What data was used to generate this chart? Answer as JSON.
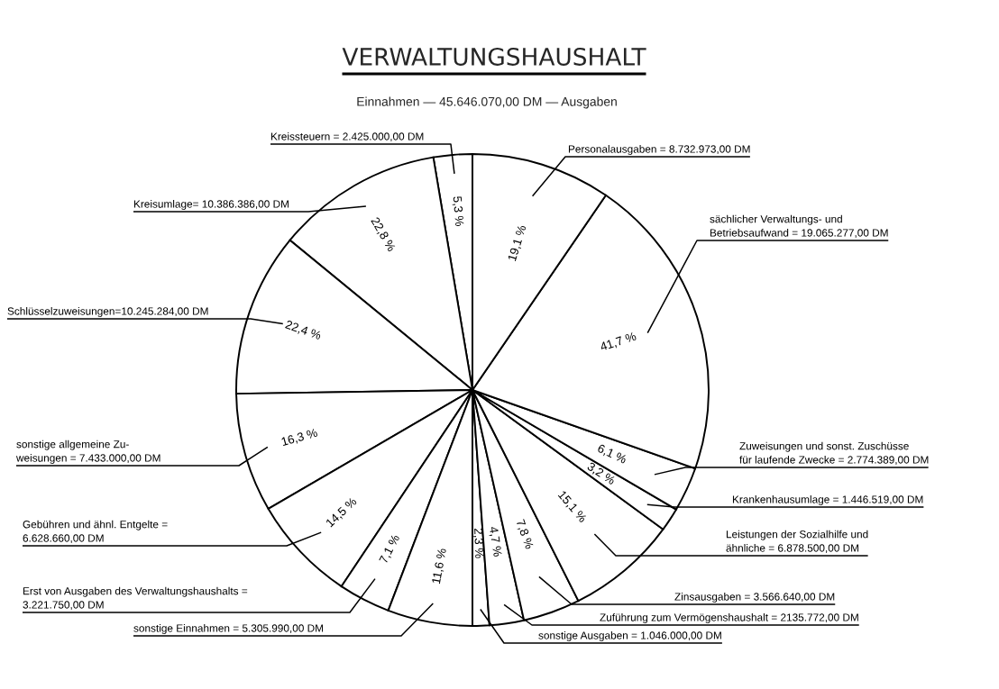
{
  "chart_data": {
    "type": "pie",
    "title": "VERWALTUNGSHAUSHALT",
    "subtitle": "Einnahmen — 45.646.070,00 DM — Ausgaben",
    "categories": [
      "Kreissteuern = 2.425.000,00 DM",
      "Kreisumlage= 10.386.386,00 DM",
      "Schlüsselzuweisungen=10.245.284,00 DM",
      "sonstige allgemeine Zu-\nweisungen = 7.433.000,00 DM",
      "Gebühren und ähnl. Entgelte =\n6.628.660,00 DM",
      "Erst von Ausgaben des Verwaltungshaushalts =\n3.221.750,00 DM",
      "sonstige Einnahmen = 5.305.990,00 DM",
      "sonstige Ausgaben = 1.046.000,00 DM",
      "Zuführung zum Vermögenshaushalt = 2135.772,00 DM",
      "Zinsausgaben = 3.566.640,00 DM",
      "Leistungen der Sozialhilfe und\nähnliche = 6.878.500,00 DM",
      "Krankenhausumlage = 1.446.519,00 DM",
      "Zuweisungen und sonst. Zuschüsse\nfür laufende Zwecke = 2.774.389,00 DM",
      "sächlicher Verwaltungs- und\nBetriebsaufwand = 19.065.277,00 DM",
      "Personalausgaben = 8.732.973,00 DM"
    ],
    "values": [
      5.3,
      22.8,
      22.4,
      16.3,
      14.5,
      7.1,
      11.6,
      2.3,
      4.7,
      7.8,
      15.1,
      3.2,
      6.1,
      41.7,
      19.1
    ],
    "value_labels": [
      "5,3 %",
      "22,8 %",
      "22,4 %",
      "16,3 %",
      "14,5 %",
      "7,1 %",
      "11,6 %",
      "2,3 %",
      "4,7 %",
      "7,8 %",
      "15,1 %",
      "3,2 %",
      "6,1 %",
      "41,7 %",
      "19,1 %"
    ],
    "colors": [
      "#ffffff",
      "#ffffff",
      "#ffffff",
      "#ffffff",
      "#ffffff",
      "#ffffff",
      "#ffffff",
      "#ffffff",
      "#ffffff",
      "#ffffff",
      "#ffffff",
      "#ffffff",
      "#ffffff",
      "#ffffff",
      "#ffffff"
    ]
  }
}
